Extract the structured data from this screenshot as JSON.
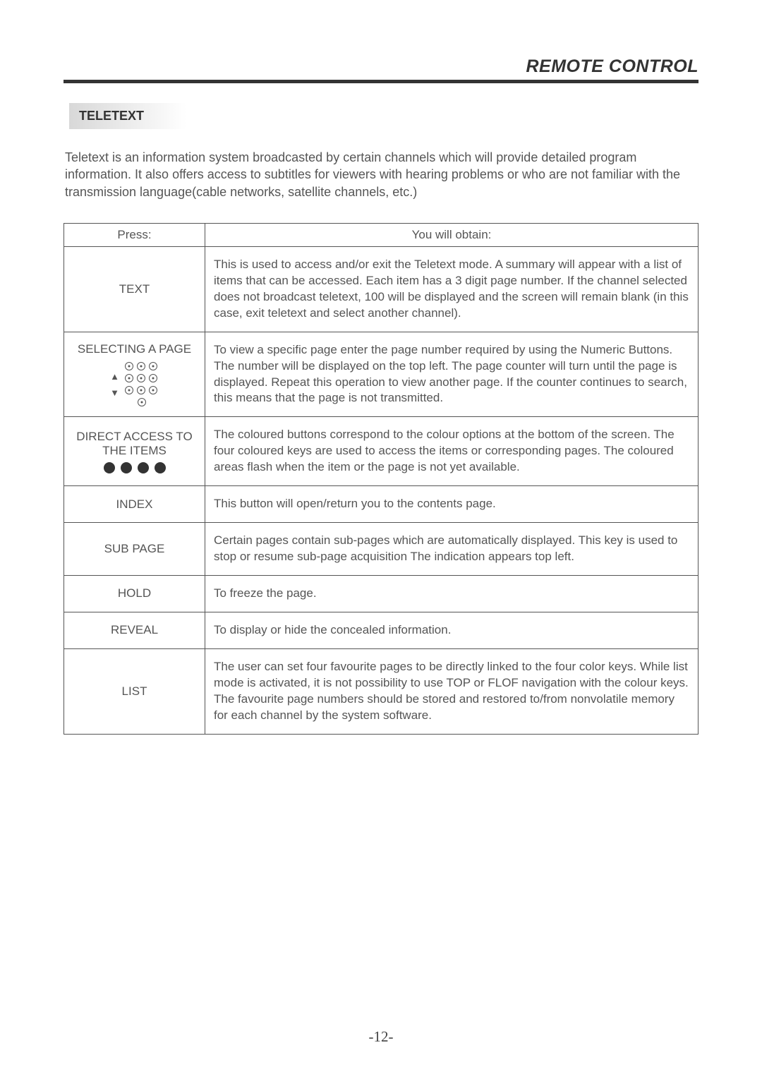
{
  "header": {
    "title": "REMOTE CONTROL"
  },
  "section": {
    "label": "TELETEXT"
  },
  "intro": "Teletext is an information system broadcasted by certain channels which will provide detailed program information. It  also offers access to subtitles for viewers with hearing problems or who are not familiar with the transmission language(cable networks, satellite channels, etc.)",
  "table": {
    "headers": {
      "press": "Press:",
      "obtain": "You  will obtain:"
    },
    "rows": [
      {
        "press": "TEXT",
        "desc": "This is used to access and/or exit the Teletext mode. A summary will appear with a list of items that can be accessed. Each item has a 3 digit page number. If  the channel selected does not broadcast teletext, 100 will be displayed and the screen will remain blank (in this case, exit teletext and select another channel)."
      },
      {
        "press": "SELECTING  A  PAGE",
        "desc": "To view a specific page enter the page number  required by using the Numeric Buttons. The number will be displayed on  the top left. The page counter will turn until the page is displayed. Repeat this operation to view another page.  If  the counter continues to search, this means that the page is not  transmitted.",
        "graphic": "keypad"
      },
      {
        "press": "DIRECT  ACCESS TO THE ITEMS",
        "desc": "The coloured buttons correspond to the colour options  at the bottom of the screen. The four coloured keys are used to access the items or corresponding pages. The coloured areas flash when the item or the page is not yet available.",
        "graphic": "dots"
      },
      {
        "press": "INDEX",
        "desc": "This button will open/return you to the contents page."
      },
      {
        "press": "SUB PAGE",
        "desc": "Certain pages contain sub-pages which are automatically displayed. This key is used to stop or resume sub-page acquisition The indication appears top left."
      },
      {
        "press": "HOLD",
        "desc": "To freeze the page."
      },
      {
        "press": "REVEAL",
        "desc": "To display or hide the concealed information."
      },
      {
        "press": "LIST",
        "desc": "The user can set four favourite pages to be directly linked to the four color keys. While list mode is activated, it is not possibility to use TOP or FLOF navigation with the colour keys. The favourite page numbers should be stored and restored to/from nonvolatile memory for each channel by the system software."
      }
    ]
  },
  "pageNumber": "-12-"
}
